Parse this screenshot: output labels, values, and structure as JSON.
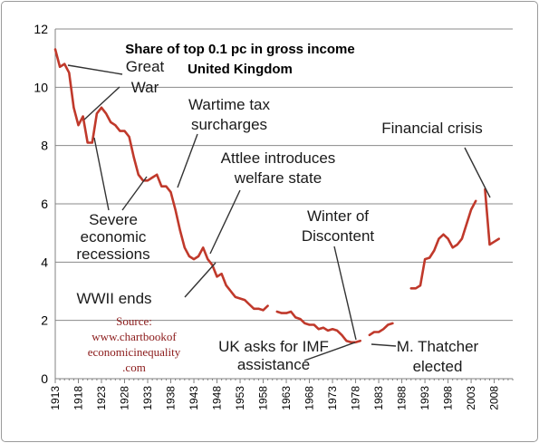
{
  "chart_data": {
    "type": "line",
    "title_lines": [
      "Share of top 0.1 pc in gross income",
      "United Kingdom"
    ],
    "xlabel": "",
    "ylabel": "",
    "xlim": [
      1913,
      2012
    ],
    "ylim": [
      0,
      12
    ],
    "y_ticks": [
      0,
      2,
      4,
      6,
      8,
      10,
      12
    ],
    "x_ticks": [
      1913,
      1918,
      1923,
      1928,
      1933,
      1938,
      1943,
      1948,
      1953,
      1958,
      1963,
      1968,
      1973,
      1978,
      1983,
      1988,
      1993,
      1998,
      2003,
      2008
    ],
    "grid": "horizontal",
    "legend": "none",
    "color": "#c0392b",
    "series": [
      {
        "segments": [
          [
            [
              1913,
              11.3
            ],
            [
              1914,
              10.7
            ],
            [
              1915,
              10.8
            ],
            [
              1916,
              10.5
            ],
            [
              1917,
              9.3
            ],
            [
              1918,
              8.7
            ],
            [
              1919,
              9.0
            ],
            [
              1920,
              8.1
            ],
            [
              1921,
              8.1
            ],
            [
              1922,
              9.1
            ],
            [
              1923,
              9.3
            ],
            [
              1924,
              9.1
            ],
            [
              1925,
              8.8
            ],
            [
              1926,
              8.7
            ],
            [
              1927,
              8.5
            ],
            [
              1928,
              8.5
            ],
            [
              1929,
              8.3
            ],
            [
              1930,
              7.6
            ],
            [
              1931,
              7.0
            ],
            [
              1932,
              6.8
            ],
            [
              1933,
              6.8
            ],
            [
              1934,
              6.9
            ],
            [
              1935,
              7.0
            ],
            [
              1936,
              6.6
            ],
            [
              1937,
              6.6
            ],
            [
              1938,
              6.4
            ],
            [
              1939,
              5.8
            ],
            [
              1940,
              5.1
            ],
            [
              1941,
              4.5
            ],
            [
              1942,
              4.2
            ],
            [
              1943,
              4.1
            ],
            [
              1944,
              4.2
            ],
            [
              1945,
              4.5
            ],
            [
              1946,
              4.1
            ],
            [
              1947,
              3.9
            ],
            [
              1948,
              3.5
            ],
            [
              1949,
              3.6
            ],
            [
              1950,
              3.2
            ],
            [
              1951,
              3.0
            ],
            [
              1952,
              2.8
            ],
            [
              1953,
              2.75
            ],
            [
              1954,
              2.7
            ],
            [
              1955,
              2.55
            ],
            [
              1956,
              2.4
            ],
            [
              1957,
              2.4
            ],
            [
              1958,
              2.35
            ],
            [
              1959,
              2.5
            ]
          ],
          [
            [
              1961,
              2.3
            ],
            [
              1962,
              2.25
            ],
            [
              1963,
              2.25
            ],
            [
              1964,
              2.3
            ],
            [
              1965,
              2.1
            ],
            [
              1966,
              2.05
            ],
            [
              1967,
              1.9
            ],
            [
              1968,
              1.85
            ],
            [
              1969,
              1.85
            ],
            [
              1970,
              1.7
            ],
            [
              1971,
              1.75
            ],
            [
              1972,
              1.65
            ],
            [
              1973,
              1.7
            ],
            [
              1974,
              1.65
            ],
            [
              1975,
              1.5
            ],
            [
              1976,
              1.3
            ],
            [
              1977,
              1.25
            ],
            [
              1978,
              1.25
            ],
            [
              1979,
              1.3
            ]
          ],
          [
            [
              1981,
              1.5
            ],
            [
              1982,
              1.6
            ],
            [
              1983,
              1.6
            ],
            [
              1984,
              1.7
            ],
            [
              1985,
              1.85
            ],
            [
              1986,
              1.9
            ]
          ],
          [
            [
              1990,
              3.1
            ],
            [
              1991,
              3.1
            ],
            [
              1992,
              3.2
            ],
            [
              1993,
              4.1
            ],
            [
              1994,
              4.15
            ],
            [
              1995,
              4.4
            ],
            [
              1996,
              4.8
            ],
            [
              1997,
              4.95
            ],
            [
              1998,
              4.8
            ],
            [
              1999,
              4.5
            ],
            [
              2000,
              4.6
            ],
            [
              2001,
              4.8
            ],
            [
              2002,
              5.3
            ],
            [
              2003,
              5.8
            ],
            [
              2004,
              6.1
            ]
          ],
          [
            [
              2006,
              6.5
            ],
            [
              2007,
              4.6
            ],
            [
              2008,
              4.7
            ],
            [
              2009,
              4.8
            ]
          ]
        ]
      }
    ],
    "annotations": [
      {
        "lines": [
          "Great",
          "War"
        ]
      },
      {
        "lines": [
          "Wartime tax",
          "surcharges"
        ]
      },
      {
        "lines": [
          "Attlee introduces",
          "welfare state"
        ]
      },
      {
        "lines": [
          "Financial crisis"
        ]
      },
      {
        "lines": [
          "Severe",
          "economic",
          "recessions"
        ]
      },
      {
        "lines": [
          "Winter of",
          "Discontent"
        ]
      },
      {
        "lines": [
          "WWII ends"
        ]
      },
      {
        "lines": [
          "UK asks for IMF",
          "assistance"
        ]
      },
      {
        "lines": [
          "M. Thatcher",
          "elected"
        ]
      }
    ],
    "source_lines": [
      "Source:",
      "www.chartbookof",
      "economicinequality",
      ".com"
    ]
  }
}
